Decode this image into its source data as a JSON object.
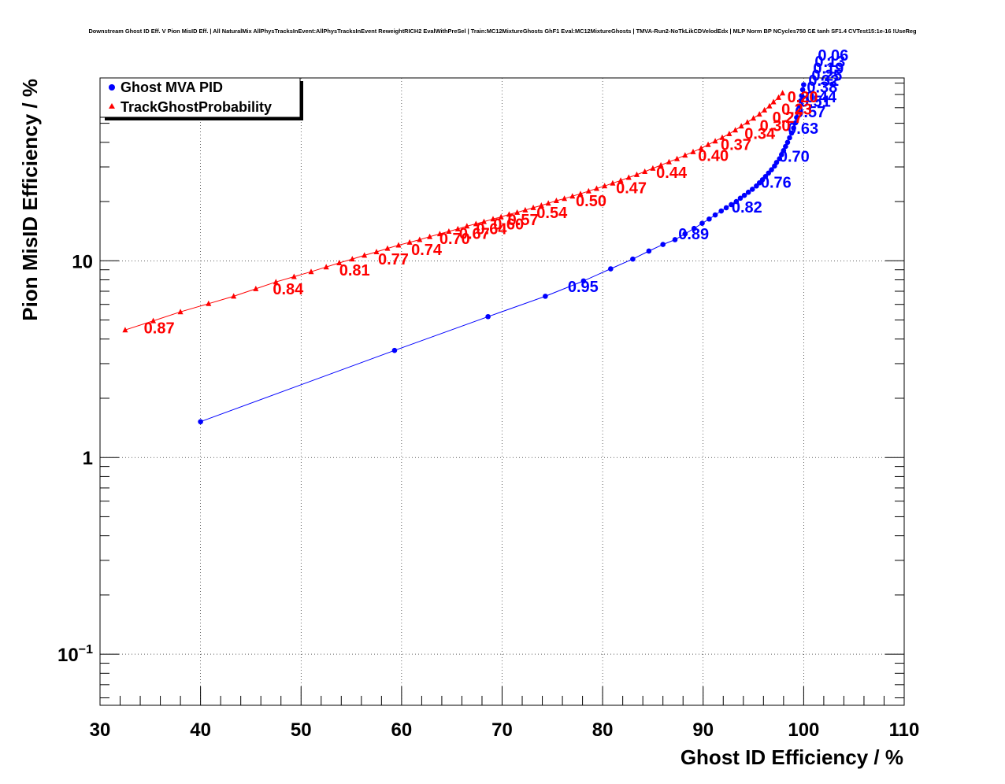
{
  "chart_data": {
    "type": "line",
    "title": "Downstream Ghost ID Eff. V Pion MisID Eff. | All NaturalMix AllPhysTracksInEvent:AllPhysTracksInEvent ReweightRICH2 EvalWithPreSel | Train:MC12MixtureGhosts GhF1 Eval:MC12MixtureGhosts | TMVA-Run2-NoTkLikCDVelodEdx | MLP Norm BP NCycles750 CE tanh SF1.4 CVTest15:1e-16 !UseReg",
    "xlabel": "Ghost ID Efficiency / %",
    "ylabel": "Pion MisID Efficiency / %",
    "xlim": [
      30,
      110
    ],
    "ylim": [
      0.055,
      85
    ],
    "yscale": "log",
    "grid": true,
    "legend_position": "top-left",
    "x_ticks": [
      "30",
      "40",
      "50",
      "60",
      "70",
      "80",
      "90",
      "100",
      "110"
    ],
    "y_ticks": [
      {
        "base": "10",
        "exp": "−1"
      },
      {
        "base": "1",
        "exp": ""
      },
      {
        "base": "10",
        "exp": ""
      }
    ],
    "series": [
      {
        "name": "Ghost MVA PID",
        "color": "#0000ff",
        "marker": "circle",
        "points": [
          [
            40.0,
            1.52
          ],
          [
            59.3,
            3.5
          ],
          [
            68.6,
            5.2
          ],
          [
            74.3,
            6.6
          ],
          [
            78.1,
            7.9
          ],
          [
            80.8,
            9.1
          ],
          [
            83.0,
            10.2
          ],
          [
            84.6,
            11.2
          ],
          [
            86.0,
            12.1
          ],
          [
            87.2,
            12.8
          ],
          [
            88.2,
            13.7
          ],
          [
            89.1,
            14.6
          ],
          [
            89.9,
            15.5
          ],
          [
            90.6,
            16.3
          ],
          [
            91.2,
            17.1
          ],
          [
            91.8,
            17.9
          ],
          [
            92.3,
            18.6
          ],
          [
            92.8,
            19.3
          ],
          [
            93.3,
            20.0
          ],
          [
            93.7,
            20.8
          ],
          [
            94.1,
            21.5
          ],
          [
            94.5,
            22.3
          ],
          [
            94.9,
            23.1
          ],
          [
            95.3,
            24.0
          ],
          [
            95.6,
            24.9
          ],
          [
            95.9,
            25.8
          ],
          [
            96.2,
            26.8
          ],
          [
            96.5,
            27.9
          ],
          [
            96.8,
            29.0
          ],
          [
            97.1,
            30.3
          ],
          [
            97.3,
            31.6
          ],
          [
            97.6,
            33.0
          ],
          [
            97.8,
            34.6
          ],
          [
            98.0,
            36.3
          ],
          [
            98.2,
            38.1
          ],
          [
            98.4,
            40.0
          ],
          [
            98.6,
            42.2
          ],
          [
            98.8,
            44.6
          ],
          [
            99.0,
            47.3
          ],
          [
            99.2,
            50.3
          ],
          [
            99.3,
            53.5
          ],
          [
            99.5,
            57.0
          ],
          [
            99.6,
            61.0
          ],
          [
            99.7,
            65.0
          ],
          [
            99.8,
            69.0
          ],
          [
            99.9,
            74.0
          ],
          [
            100.0,
            78.5
          ]
        ],
        "labels": [
          {
            "text": "0.95",
            "x": 78.1,
            "y": 7.9,
            "dx": -20,
            "dy": 14
          },
          {
            "text": "0.89",
            "x": 89.1,
            "y": 14.6,
            "dx": -20,
            "dy": 14
          },
          {
            "text": "0.82",
            "x": 93.3,
            "y": 20.0,
            "dx": -6,
            "dy": 14
          },
          {
            "text": "0.76",
            "x": 96.2,
            "y": 26.8,
            "dx": -6,
            "dy": 14
          },
          {
            "text": "0.70",
            "x": 98.0,
            "y": 36.3,
            "dx": -6,
            "dy": 14
          },
          {
            "text": "0.63",
            "x": 99.2,
            "y": 50.3,
            "dx": -10,
            "dy": 14
          },
          {
            "text": "0.57",
            "x": 99.6,
            "y": 61.0,
            "dx": -6,
            "dy": 14
          },
          {
            "text": "0.51",
            "x": 99.8,
            "y": 69.0,
            "dx": -2,
            "dy": 14
          },
          {
            "text": "0.44",
            "x": 99.9,
            "y": 74.0,
            "dx": 4,
            "dy": 16
          },
          {
            "text": "0.38",
            "x": 100.0,
            "y": 78.5,
            "dx": 4,
            "dy": 10
          },
          {
            "text": "0.32",
            "x": 100.0,
            "y": 82.0,
            "dx": 6,
            "dy": 6
          },
          {
            "text": "0.25",
            "x": 100.0,
            "y": 84.0,
            "dx": 10,
            "dy": 2
          },
          {
            "text": "0.19",
            "x": 100.0,
            "y": 86.0,
            "dx": 12,
            "dy": -4
          },
          {
            "text": "0.13",
            "x": 100.0,
            "y": 88.0,
            "dx": 14,
            "dy": -10
          },
          {
            "text": "0.06",
            "x": 100.0,
            "y": 90.0,
            "dx": 18,
            "dy": -16
          }
        ]
      },
      {
        "name": "TrackGhostProbability",
        "color": "#ff0000",
        "marker": "triangle",
        "points": [
          [
            32.5,
            4.45
          ],
          [
            35.3,
            4.95
          ],
          [
            38.0,
            5.5
          ],
          [
            40.8,
            6.05
          ],
          [
            43.3,
            6.6
          ],
          [
            45.5,
            7.2
          ],
          [
            47.5,
            7.8
          ],
          [
            49.3,
            8.3
          ],
          [
            51.0,
            8.8
          ],
          [
            52.5,
            9.3
          ],
          [
            53.8,
            9.75
          ],
          [
            55.1,
            10.2
          ],
          [
            56.3,
            10.65
          ],
          [
            57.5,
            11.1
          ],
          [
            58.6,
            11.55
          ],
          [
            59.7,
            12.0
          ],
          [
            60.8,
            12.4
          ],
          [
            61.8,
            12.8
          ],
          [
            62.8,
            13.25
          ],
          [
            63.8,
            13.7
          ],
          [
            64.7,
            14.1
          ],
          [
            65.6,
            14.5
          ],
          [
            66.5,
            15.0
          ],
          [
            67.4,
            15.4
          ],
          [
            68.2,
            15.8
          ],
          [
            69.1,
            16.3
          ],
          [
            69.9,
            16.7
          ],
          [
            70.7,
            17.2
          ],
          [
            71.5,
            17.6
          ],
          [
            72.3,
            18.1
          ],
          [
            73.1,
            18.6
          ],
          [
            73.9,
            19.1
          ],
          [
            74.6,
            19.6
          ],
          [
            75.4,
            20.2
          ],
          [
            76.2,
            20.7
          ],
          [
            77.0,
            21.3
          ],
          [
            77.8,
            21.9
          ],
          [
            78.6,
            22.6
          ],
          [
            79.4,
            23.3
          ],
          [
            80.2,
            24.0
          ],
          [
            81.0,
            24.8
          ],
          [
            81.8,
            25.6
          ],
          [
            82.6,
            26.5
          ],
          [
            83.4,
            27.4
          ],
          [
            84.2,
            28.4
          ],
          [
            85.0,
            29.5
          ],
          [
            85.8,
            30.6
          ],
          [
            86.6,
            31.8
          ],
          [
            87.4,
            33.0
          ],
          [
            88.2,
            34.4
          ],
          [
            89.0,
            35.8
          ],
          [
            89.8,
            37.3
          ],
          [
            90.5,
            38.9
          ],
          [
            91.2,
            40.6
          ],
          [
            91.9,
            42.3
          ],
          [
            92.6,
            44.2
          ],
          [
            93.2,
            46.2
          ],
          [
            93.8,
            48.3
          ],
          [
            94.4,
            50.6
          ],
          [
            95.0,
            53.0
          ],
          [
            95.6,
            55.6
          ],
          [
            96.1,
            58.3
          ],
          [
            96.6,
            61.2
          ],
          [
            97.0,
            64.2
          ],
          [
            97.5,
            67.6
          ],
          [
            97.9,
            71.2
          ]
        ],
        "labels": [
          {
            "text": "0.87",
            "x": 35.3,
            "y": 4.95,
            "dx": -12,
            "dy": 16
          },
          {
            "text": "0.84",
            "x": 47.5,
            "y": 7.8,
            "dx": -4,
            "dy": 16
          },
          {
            "text": "0.81",
            "x": 53.8,
            "y": 9.75,
            "dx": 0,
            "dy": 16
          },
          {
            "text": "0.77",
            "x": 57.5,
            "y": 11.1,
            "dx": 2,
            "dy": 16
          },
          {
            "text": "0.74",
            "x": 60.8,
            "y": 12.4,
            "dx": 2,
            "dy": 16
          },
          {
            "text": "0.70",
            "x": 64.7,
            "y": 14.1,
            "dx": -12,
            "dy": 16
          },
          {
            "text": "0.67",
            "x": 66.5,
            "y": 15.0,
            "dx": -10,
            "dy": 16
          },
          {
            "text": "0.64",
            "x": 68.2,
            "y": 15.8,
            "dx": -10,
            "dy": 16
          },
          {
            "text": "0.60",
            "x": 69.9,
            "y": 16.7,
            "dx": -10,
            "dy": 16
          },
          {
            "text": "0.57",
            "x": 71.5,
            "y": 17.6,
            "dx": -12,
            "dy": 16
          },
          {
            "text": "0.54",
            "x": 73.9,
            "y": 19.1,
            "dx": -6,
            "dy": 16
          },
          {
            "text": "0.50",
            "x": 77.8,
            "y": 21.9,
            "dx": -6,
            "dy": 16
          },
          {
            "text": "0.47",
            "x": 81.8,
            "y": 25.6,
            "dx": -6,
            "dy": 16
          },
          {
            "text": "0.44",
            "x": 85.8,
            "y": 30.6,
            "dx": -6,
            "dy": 16
          },
          {
            "text": "0.40",
            "x": 89.8,
            "y": 37.3,
            "dx": -4,
            "dy": 16
          },
          {
            "text": "0.37",
            "x": 91.9,
            "y": 42.3,
            "dx": -2,
            "dy": 16
          },
          {
            "text": "0.34",
            "x": 93.8,
            "y": 48.3,
            "dx": 4,
            "dy": 16
          },
          {
            "text": "0.30",
            "x": 95.0,
            "y": 53.0,
            "dx": 8,
            "dy": 16
          },
          {
            "text": "0.27",
            "x": 96.1,
            "y": 58.3,
            "dx": 10,
            "dy": 16
          },
          {
            "text": "0.23",
            "x": 97.0,
            "y": 64.2,
            "dx": 10,
            "dy": 16
          },
          {
            "text": "0.20",
            "x": 97.9,
            "y": 71.2,
            "dx": 6,
            "dy": 12
          }
        ]
      }
    ]
  }
}
